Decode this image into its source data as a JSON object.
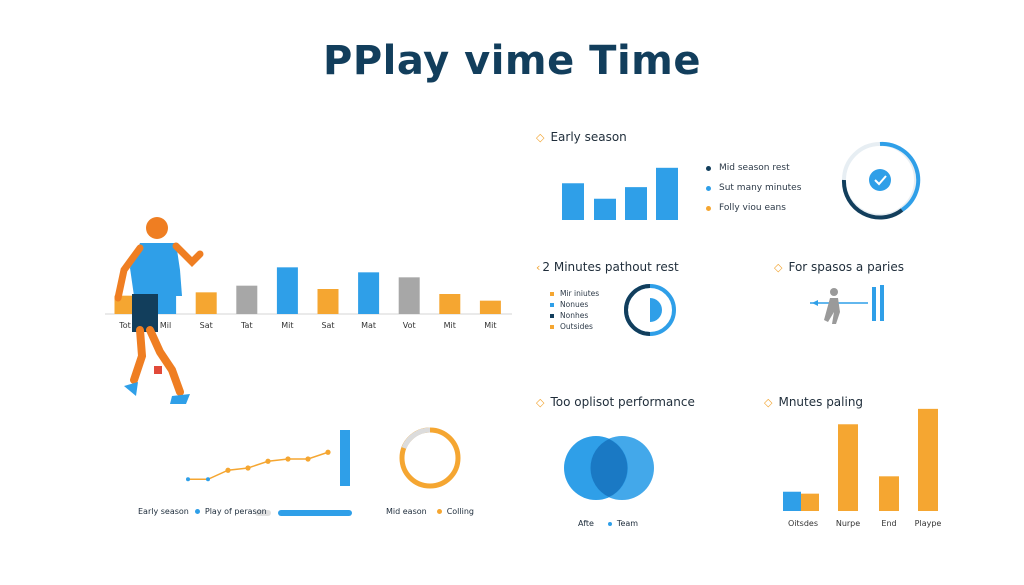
{
  "title": "PPlay vime Time",
  "colors": {
    "blue": "#2f9fe8",
    "orange": "#f5a631",
    "gray": "#a7a7a7",
    "navy": "#123e5c"
  },
  "chart_data": [
    {
      "type": "bar",
      "id": "main-weekly",
      "categories": [
        "Tot",
        "Mil",
        "Sat",
        "Tat",
        "Mit",
        "Sat",
        "Mat",
        "Vot",
        "Mit",
        "Mit"
      ],
      "values": [
        22,
        36,
        26,
        34,
        56,
        30,
        50,
        44,
        24,
        16
      ],
      "colors": [
        "orange",
        "blue",
        "orange",
        "gray",
        "blue",
        "orange",
        "blue",
        "gray",
        "orange",
        "orange"
      ],
      "ylim": [
        0,
        60
      ]
    },
    {
      "type": "bar",
      "id": "early-season",
      "title": "Early season",
      "values": [
        38,
        22,
        34,
        54
      ],
      "ylim": [
        0,
        60
      ],
      "legend": [
        "Mid season rest",
        "Sut many minutes",
        "Folly viou eans"
      ]
    },
    {
      "type": "pie",
      "id": "minutes-pathout",
      "title": "2 Minutes pathout rest",
      "legend": [
        "Mir iniutes",
        "Nonues",
        "Nonhes",
        "Outsides"
      ]
    },
    {
      "type": "other",
      "id": "for-spasos",
      "title": "For spasos a paries"
    },
    {
      "type": "line",
      "id": "trend-line",
      "x": [
        1,
        2,
        3,
        4,
        5,
        6,
        7,
        8
      ],
      "y": [
        6,
        6,
        14,
        16,
        22,
        24,
        24,
        30
      ],
      "ylim": [
        0,
        40
      ],
      "legend": [
        "Early season",
        "Play of perason",
        "Mid eason",
        "Colling"
      ]
    },
    {
      "type": "pie",
      "id": "top-oplisot",
      "title": "Too oplisot performance",
      "legend": [
        "Afte",
        "Team"
      ]
    },
    {
      "type": "bar",
      "id": "minutes-paling",
      "title": "Mnutes paling",
      "categories": [
        "Oitsdes",
        "Nurpe",
        "End",
        "Plaype"
      ],
      "series": [
        {
          "values": [
            18,
            90,
            36,
            106
          ],
          "color": "orange"
        },
        {
          "values": [
            20,
            0,
            0,
            0
          ],
          "color": "blue"
        }
      ],
      "ylim": [
        0,
        110
      ]
    }
  ]
}
